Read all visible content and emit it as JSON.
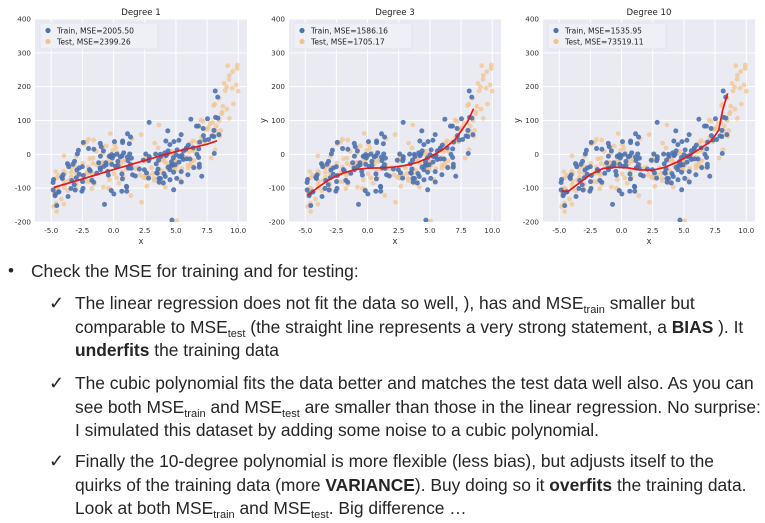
{
  "colors": {
    "train": "#4c72b0",
    "test": "#f2c48d",
    "fit": "#e41a1c",
    "panel_bg": "#eaeaf2"
  },
  "chart_data": [
    {
      "type": "scatter",
      "title": "Degree 1",
      "xlabel": "x",
      "ylabel": "",
      "xlim": [
        -6.3,
        10.7
      ],
      "ylim": [
        -200,
        400
      ],
      "xticks": [
        "-5.0",
        "-2.5",
        "0.0",
        "2.5",
        "5.0",
        "7.5",
        "10.0"
      ],
      "yticks": [
        "-200",
        "-100",
        "0",
        "100",
        "200",
        "300",
        "400"
      ],
      "legend": [
        "Train, MSE=2005.50",
        "Test, MSE=2399.26"
      ],
      "legend_position": "top-left",
      "grid": true,
      "fit_line": {
        "x": [
          -4.8,
          -2.5,
          0,
          2.5,
          5,
          7.5,
          8.3
        ],
        "y": [
          -98,
          -73,
          -45,
          -18,
          8,
          30,
          40
        ]
      }
    },
    {
      "type": "scatter",
      "title": "Degree 3",
      "xlabel": "x",
      "ylabel": "y",
      "xlim": [
        -6.3,
        10.7
      ],
      "ylim": [
        -200,
        400
      ],
      "xticks": [
        "-5.0",
        "-2.5",
        "0.0",
        "2.5",
        "5.0",
        "7.5",
        "10.0"
      ],
      "yticks": [
        "-200",
        "-100",
        "0",
        "100",
        "200",
        "300",
        "400"
      ],
      "legend": [
        "Train, MSE=1586.16",
        "Test, MSE=1705.17"
      ],
      "legend_position": "top-left",
      "grid": true,
      "fit_line": {
        "x": [
          -4.8,
          -4,
          -3,
          -2,
          -1,
          0,
          1,
          2,
          3,
          4,
          5,
          6,
          7,
          8,
          8.5
        ],
        "y": [
          -122,
          -98,
          -73,
          -56,
          -45,
          -41,
          -40,
          -38,
          -33,
          -24,
          -8,
          13,
          43,
          95,
          135
        ]
      }
    },
    {
      "type": "scatter",
      "title": "Degree 10",
      "xlabel": "x",
      "ylabel": "y",
      "xlim": [
        -6.3,
        10.7
      ],
      "ylim": [
        -200,
        400
      ],
      "xticks": [
        "-5.0",
        "-2.5",
        "0.0",
        "2.5",
        "5.0",
        "7.5",
        "10.0"
      ],
      "yticks": [
        "-200",
        "-100",
        "0",
        "100",
        "200",
        "300",
        "400"
      ],
      "legend": [
        "Train, MSE=1535.95",
        "Test, MSE=73519.11"
      ],
      "legend_position": "top-left",
      "grid": true,
      "fit_line": {
        "x": [
          -4.8,
          -4.3,
          -3.5,
          -2.5,
          -1.5,
          -0.5,
          0.5,
          1.5,
          2.5,
          3.5,
          4.5,
          5.5,
          6.5,
          7.2,
          7.8,
          8.1,
          8.5
        ],
        "y": [
          -108,
          -110,
          -88,
          -60,
          -42,
          -38,
          -40,
          -46,
          -47,
          -38,
          -22,
          -2,
          22,
          40,
          72,
          130,
          180
        ]
      }
    }
  ],
  "text": {
    "main_bullet": "•",
    "main": "Check the MSE for training and for testing:",
    "check_mark": "✓",
    "b1": {
      "t1": "The linear regression does not fit the data so well, ), has and MSE",
      "s1": "train",
      "t2": " smaller but comparable to MSE",
      "s2": "test",
      "t3": " (the straight line represents  a very strong statement, a ",
      "bold1": "BIAS",
      "t4": " ). It ",
      "bold2": "underfits",
      "t5": " the training data"
    },
    "b2": {
      "t1": "The cubic polynomial fits the data better and matches the test data well also. As you can see both MSE",
      "s1": "train",
      "t2": " and MSE",
      "s2": "test",
      "t3": " are smaller than those in the linear regression. No surprise: I simulated this dataset by adding some noise to a cubic polynomial."
    },
    "b3": {
      "t1": "Finally the 10-degree polynomial is more flexible (less bias), but adjusts itself to  the quirks of the training data (more ",
      "bold1": "VARIANCE",
      "t2": "). Buy doing so it ",
      "bold2": "overfits",
      "t3": " the training data. Look  at both MSE",
      "s1": "train",
      "t4": " and MSE",
      "s2": "test",
      "t5": ".  Big difference …"
    }
  }
}
